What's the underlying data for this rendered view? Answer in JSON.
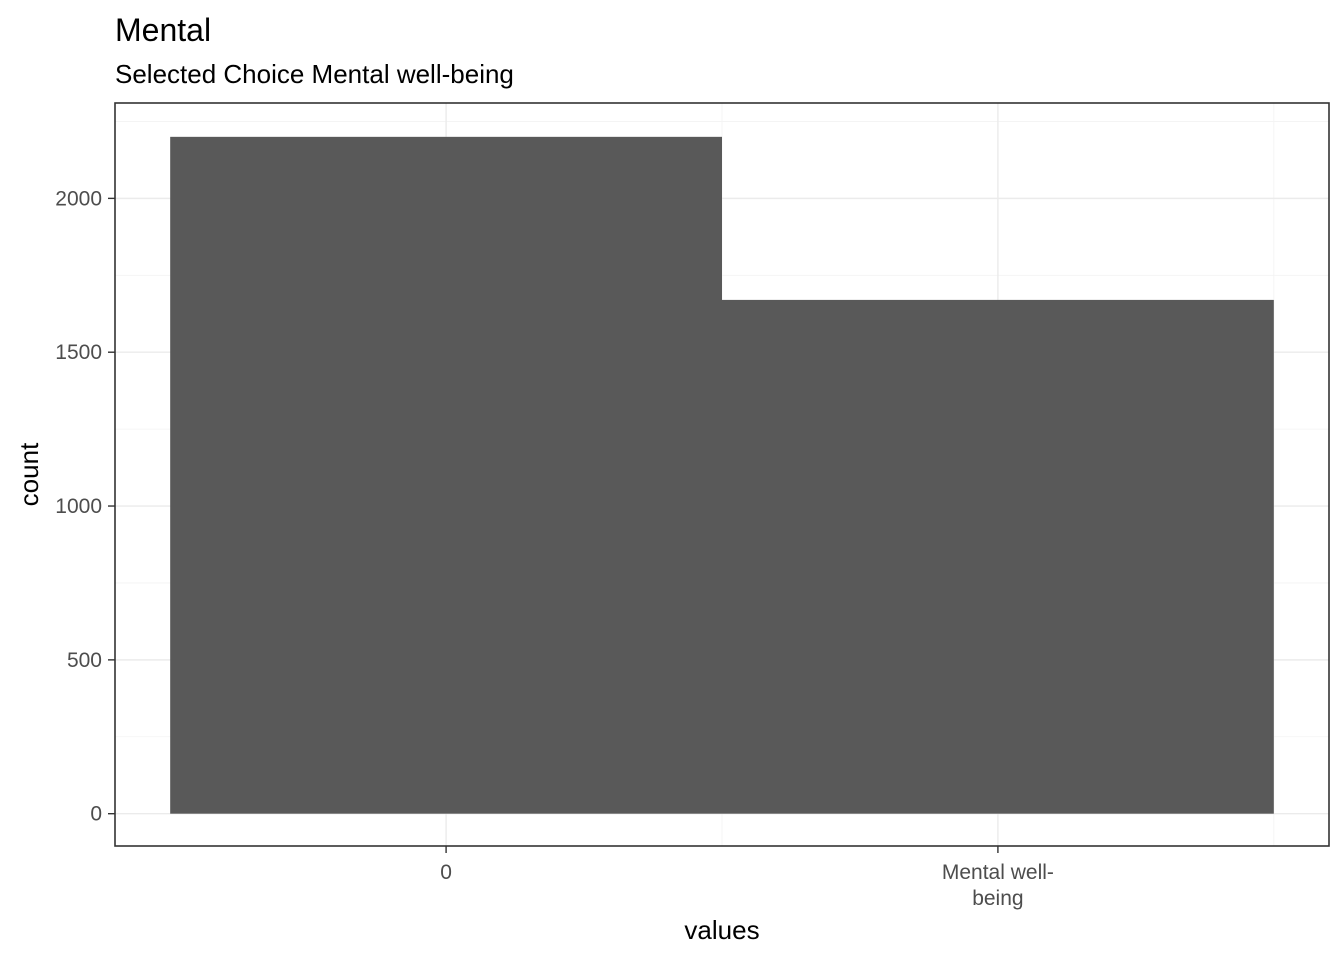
{
  "chart_data": {
    "type": "bar",
    "title": "Mental",
    "subtitle": "Selected Choice Mental well-being",
    "xlabel": "values",
    "ylabel": "count",
    "categories": [
      {
        "label_lines": [
          "0"
        ]
      },
      {
        "label_lines": [
          "Mental well-",
          "being"
        ]
      }
    ],
    "values": [
      2200,
      1670
    ],
    "ylim": [
      -105,
      2310
    ],
    "yticks": [
      {
        "value": 0,
        "label": "0"
      },
      {
        "value": 500,
        "label": "500"
      },
      {
        "value": 1000,
        "label": "1000"
      },
      {
        "value": 1500,
        "label": "1500"
      },
      {
        "value": 2000,
        "label": "2000"
      }
    ],
    "grid": true,
    "bar_color": "#595959",
    "grid_color": "#ebebeb",
    "border_color": "#333333"
  }
}
